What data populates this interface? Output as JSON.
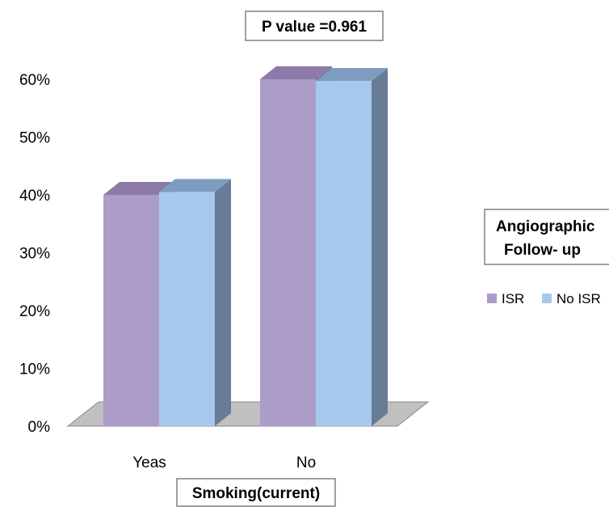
{
  "chart_data": {
    "type": "bar",
    "title": "",
    "annotation": "P value =0.961",
    "xlabel": "Smoking(current)",
    "ylabel": "",
    "categories": [
      "Yeas",
      "No"
    ],
    "series": [
      {
        "name": "ISR",
        "values": [
          40,
          60
        ]
      },
      {
        "name": "No ISR",
        "values": [
          40.5,
          59.7
        ]
      }
    ],
    "ylim": [
      0,
      60
    ],
    "yticks": [
      "0%",
      "10%",
      "20%",
      "30%",
      "40%",
      "50%",
      "60%"
    ],
    "legend": {
      "title_line1": "Angiographic",
      "title_line2": "Follow- up",
      "placement": "right"
    },
    "grid": false,
    "style": "3d-clustered-column",
    "colors": {
      "isr_front": "#ab9cc8",
      "isr_top": "#8e7aa8",
      "noisr_front": "#a6c8ec",
      "noisr_top": "#7e9cc0",
      "side": "#687c98",
      "floor": "#c0c0c0"
    }
  }
}
